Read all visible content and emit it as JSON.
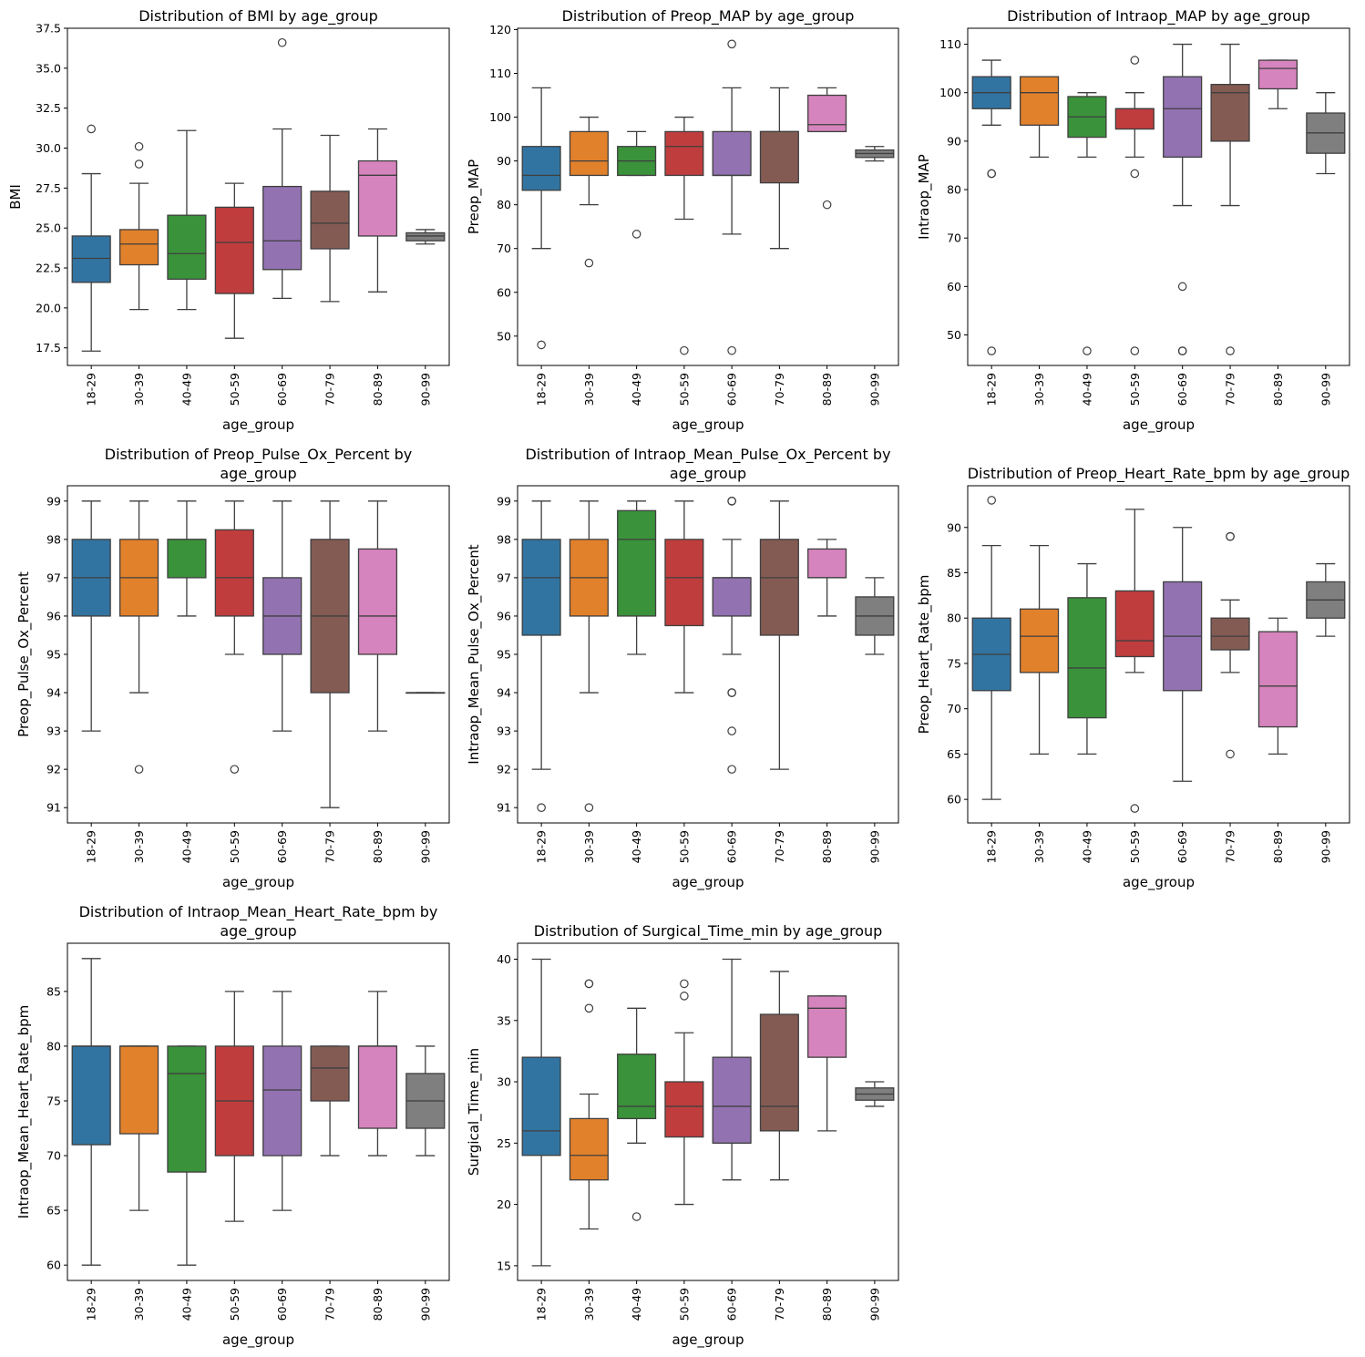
{
  "figure": {
    "palette": [
      "#1f77b4",
      "#ff7f0e",
      "#2ca02c",
      "#d62728",
      "#9467bd",
      "#8c564b",
      "#e377c2",
      "#7f7f7f"
    ],
    "box_alpha_note": "seaborn desaturated palette",
    "box_colors": [
      "#3274a1",
      "#e1812c",
      "#3a923a",
      "#c03d3e",
      "#9372b2",
      "#845b53",
      "#d684bd",
      "#7f7f7f"
    ],
    "line_color": "#3f3f3f"
  },
  "chart_data": [
    {
      "type": "box",
      "title": "Distribution of BMI by age_group",
      "title_lines": [
        "Distribution of BMI by age_group"
      ],
      "xlabel": "age_group",
      "ylabel": "BMI",
      "ylim": [
        16.4,
        37.5
      ],
      "yticks": [
        17.5,
        20.0,
        22.5,
        25.0,
        27.5,
        30.0,
        32.5,
        35.0,
        37.5
      ],
      "ytick_labels": [
        "17.5",
        "20.0",
        "22.5",
        "25.0",
        "27.5",
        "30.0",
        "32.5",
        "35.0",
        "37.5"
      ],
      "categories": [
        "18-29",
        "30-39",
        "40-49",
        "50-59",
        "60-69",
        "70-79",
        "80-89",
        "90-99"
      ],
      "boxes": [
        {
          "whislo": 17.3,
          "q1": 21.6,
          "med": 23.1,
          "q3": 24.5,
          "whishi": 28.4,
          "fliers": [
            31.2
          ]
        },
        {
          "whislo": 19.9,
          "q1": 22.7,
          "med": 24.0,
          "q3": 24.9,
          "whishi": 27.8,
          "fliers": [
            30.1,
            29.0
          ]
        },
        {
          "whislo": 19.9,
          "q1": 21.8,
          "med": 23.4,
          "q3": 25.8,
          "whishi": 31.1,
          "fliers": []
        },
        {
          "whislo": 18.1,
          "q1": 20.9,
          "med": 24.1,
          "q3": 26.3,
          "whishi": 27.8,
          "fliers": []
        },
        {
          "whislo": 20.6,
          "q1": 22.4,
          "med": 24.2,
          "q3": 27.6,
          "whishi": 31.2,
          "fliers": [
            36.6
          ]
        },
        {
          "whislo": 20.4,
          "q1": 23.7,
          "med": 25.3,
          "q3": 27.3,
          "whishi": 30.8,
          "fliers": []
        },
        {
          "whislo": 21.0,
          "q1": 24.5,
          "med": 28.3,
          "q3": 29.2,
          "whishi": 31.2,
          "fliers": []
        },
        {
          "whislo": 24.0,
          "q1": 24.2,
          "med": 24.5,
          "q3": 24.7,
          "whishi": 24.9,
          "fliers": []
        }
      ]
    },
    {
      "type": "box",
      "title": "Distribution of Preop_MAP by age_group",
      "title_lines": [
        "Distribution of Preop_MAP by age_group"
      ],
      "xlabel": "age_group",
      "ylabel": "Preop_MAP",
      "ylim": [
        43.3,
        120.3
      ],
      "yticks": [
        50,
        60,
        70,
        80,
        90,
        100,
        110,
        120
      ],
      "ytick_labels": [
        "50",
        "60",
        "70",
        "80",
        "90",
        "100",
        "110",
        "120"
      ],
      "categories": [
        "18-29",
        "30-39",
        "40-49",
        "50-59",
        "60-69",
        "70-79",
        "80-89",
        "90-99"
      ],
      "boxes": [
        {
          "whislo": 70.0,
          "q1": 83.3,
          "med": 86.7,
          "q3": 93.3,
          "whishi": 106.7,
          "fliers": [
            48.0
          ]
        },
        {
          "whislo": 80.0,
          "q1": 86.7,
          "med": 90.0,
          "q3": 96.7,
          "whishi": 100.0,
          "fliers": [
            66.7
          ]
        },
        {
          "whislo": 86.7,
          "q1": 86.7,
          "med": 90.0,
          "q3": 93.3,
          "whishi": 96.7,
          "fliers": [
            73.3
          ]
        },
        {
          "whislo": 76.7,
          "q1": 86.7,
          "med": 93.3,
          "q3": 96.7,
          "whishi": 100.0,
          "fliers": [
            46.7
          ]
        },
        {
          "whislo": 73.3,
          "q1": 86.7,
          "med": 86.7,
          "q3": 96.7,
          "whishi": 106.7,
          "fliers": [
            116.7,
            46.7
          ]
        },
        {
          "whislo": 70.0,
          "q1": 85.0,
          "med": 96.7,
          "q3": 96.7,
          "whishi": 106.7,
          "fliers": []
        },
        {
          "whislo": 96.7,
          "q1": 96.7,
          "med": 98.3,
          "q3": 105.0,
          "whishi": 106.7,
          "fliers": [
            80.0
          ]
        },
        {
          "whislo": 90.0,
          "q1": 90.8,
          "med": 91.7,
          "q3": 92.5,
          "whishi": 93.3,
          "fliers": []
        }
      ]
    },
    {
      "type": "box",
      "title": "Distribution of Intraop_MAP by age_group",
      "title_lines": [
        "Distribution of Intraop_MAP by age_group"
      ],
      "xlabel": "age_group",
      "ylabel": "Intraop_MAP",
      "ylim": [
        43.7,
        113.3
      ],
      "yticks": [
        50,
        60,
        70,
        80,
        90,
        100,
        110
      ],
      "ytick_labels": [
        "50",
        "60",
        "70",
        "80",
        "90",
        "100",
        "110"
      ],
      "categories": [
        "18-29",
        "30-39",
        "40-49",
        "50-59",
        "60-69",
        "70-79",
        "80-89",
        "90-99"
      ],
      "boxes": [
        {
          "whislo": 93.3,
          "q1": 96.7,
          "med": 100.0,
          "q3": 103.3,
          "whishi": 106.7,
          "fliers": [
            83.3,
            83.3,
            46.7
          ]
        },
        {
          "whislo": 86.7,
          "q1": 93.3,
          "med": 100.0,
          "q3": 103.3,
          "whishi": 103.3,
          "fliers": []
        },
        {
          "whislo": 86.7,
          "q1": 90.8,
          "med": 95.0,
          "q3": 99.2,
          "whishi": 100.0,
          "fliers": [
            46.7
          ]
        },
        {
          "whislo": 86.7,
          "q1": 92.5,
          "med": 96.7,
          "q3": 96.7,
          "whishi": 100.0,
          "fliers": [
            106.7,
            83.3,
            46.7
          ]
        },
        {
          "whislo": 76.7,
          "q1": 86.7,
          "med": 96.7,
          "q3": 103.3,
          "whishi": 110.0,
          "fliers": [
            60.0,
            46.7,
            46.7
          ]
        },
        {
          "whislo": 76.7,
          "q1": 90.0,
          "med": 100.0,
          "q3": 101.7,
          "whishi": 110.0,
          "fliers": [
            46.7
          ]
        },
        {
          "whislo": 96.7,
          "q1": 100.8,
          "med": 105.0,
          "q3": 106.7,
          "whishi": 106.7,
          "fliers": []
        },
        {
          "whislo": 83.3,
          "q1": 87.5,
          "med": 91.7,
          "q3": 95.8,
          "whishi": 100.0,
          "fliers": []
        }
      ]
    },
    {
      "type": "box",
      "title": "Distribution of Preop_Pulse_Ox_Percent by age_group",
      "title_lines": [
        "Distribution of Preop_Pulse_Ox_Percent by",
        "age_group"
      ],
      "xlabel": "age_group",
      "ylabel": "Preop_Pulse_Ox_Percent",
      "ylim": [
        90.6,
        99.4
      ],
      "yticks": [
        91,
        92,
        93,
        94,
        95,
        96,
        97,
        98,
        99
      ],
      "ytick_labels": [
        "91",
        "92",
        "93",
        "94",
        "95",
        "96",
        "97",
        "98",
        "99"
      ],
      "categories": [
        "18-29",
        "30-39",
        "40-49",
        "50-59",
        "60-69",
        "70-79",
        "80-89",
        "90-99"
      ],
      "boxes": [
        {
          "whislo": 93,
          "q1": 96,
          "med": 97,
          "q3": 98,
          "whishi": 99,
          "fliers": []
        },
        {
          "whislo": 94,
          "q1": 96,
          "med": 97,
          "q3": 98,
          "whishi": 99,
          "fliers": [
            92
          ]
        },
        {
          "whislo": 96,
          "q1": 97,
          "med": 98,
          "q3": 98,
          "whishi": 99,
          "fliers": []
        },
        {
          "whislo": 95,
          "q1": 96,
          "med": 97,
          "q3": 98.25,
          "whishi": 99,
          "fliers": [
            92
          ]
        },
        {
          "whislo": 93,
          "q1": 95,
          "med": 96,
          "q3": 97,
          "whishi": 99,
          "fliers": []
        },
        {
          "whislo": 91,
          "q1": 94,
          "med": 96,
          "q3": 98,
          "whishi": 99,
          "fliers": []
        },
        {
          "whislo": 93,
          "q1": 95,
          "med": 96,
          "q3": 97.75,
          "whishi": 99,
          "fliers": []
        },
        {
          "whislo": 94,
          "q1": 94,
          "med": 94,
          "q3": 94,
          "whishi": 94,
          "fliers": []
        }
      ]
    },
    {
      "type": "box",
      "title": "Distribution of Intraop_Mean_Pulse_Ox_Percent by age_group",
      "title_lines": [
        "Distribution of Intraop_Mean_Pulse_Ox_Percent by",
        "age_group"
      ],
      "xlabel": "age_group",
      "ylabel": "Intraop_Mean_Pulse_Ox_Percent",
      "ylim": [
        90.6,
        99.4
      ],
      "yticks": [
        91,
        92,
        93,
        94,
        95,
        96,
        97,
        98,
        99
      ],
      "ytick_labels": [
        "91",
        "92",
        "93",
        "94",
        "95",
        "96",
        "97",
        "98",
        "99"
      ],
      "categories": [
        "18-29",
        "30-39",
        "40-49",
        "50-59",
        "60-69",
        "70-79",
        "80-89",
        "90-99"
      ],
      "boxes": [
        {
          "whislo": 92,
          "q1": 95.5,
          "med": 97,
          "q3": 98,
          "whishi": 99,
          "fliers": [
            91
          ]
        },
        {
          "whislo": 94,
          "q1": 96,
          "med": 97,
          "q3": 98,
          "whishi": 99,
          "fliers": [
            91
          ]
        },
        {
          "whislo": 95,
          "q1": 96,
          "med": 98,
          "q3": 98.75,
          "whishi": 99,
          "fliers": []
        },
        {
          "whislo": 94,
          "q1": 95.75,
          "med": 97,
          "q3": 98,
          "whishi": 99,
          "fliers": []
        },
        {
          "whislo": 95,
          "q1": 96,
          "med": 97,
          "q3": 97,
          "whishi": 98,
          "fliers": [
            99,
            99,
            94,
            94,
            93,
            92
          ]
        },
        {
          "whislo": 92,
          "q1": 95.5,
          "med": 97,
          "q3": 98,
          "whishi": 99,
          "fliers": []
        },
        {
          "whislo": 96,
          "q1": 97,
          "med": 97,
          "q3": 97.75,
          "whishi": 98,
          "fliers": []
        },
        {
          "whislo": 95,
          "q1": 95.5,
          "med": 96,
          "q3": 96.5,
          "whishi": 97,
          "fliers": []
        }
      ]
    },
    {
      "type": "box",
      "title": "Distribution of Preop_Heart_Rate_bpm by age_group",
      "title_lines": [
        "Distribution of Preop_Heart_Rate_bpm by age_group"
      ],
      "xlabel": "age_group",
      "ylabel": "Preop_Heart_Rate_bpm",
      "ylim": [
        57.4,
        94.6
      ],
      "yticks": [
        60,
        65,
        70,
        75,
        80,
        85,
        90
      ],
      "ytick_labels": [
        "60",
        "65",
        "70",
        "75",
        "80",
        "85",
        "90"
      ],
      "categories": [
        "18-29",
        "30-39",
        "40-49",
        "50-59",
        "60-69",
        "70-79",
        "80-89",
        "90-99"
      ],
      "boxes": [
        {
          "whislo": 60,
          "q1": 72,
          "med": 76,
          "q3": 80,
          "whishi": 88,
          "fliers": [
            93
          ]
        },
        {
          "whislo": 65,
          "q1": 74,
          "med": 78,
          "q3": 81,
          "whishi": 88,
          "fliers": []
        },
        {
          "whislo": 65,
          "q1": 69,
          "med": 74.5,
          "q3": 82.25,
          "whishi": 86,
          "fliers": []
        },
        {
          "whislo": 74,
          "q1": 75.75,
          "med": 77.5,
          "q3": 83,
          "whishi": 92,
          "fliers": [
            59
          ]
        },
        {
          "whislo": 62,
          "q1": 72,
          "med": 78,
          "q3": 84,
          "whishi": 90,
          "fliers": []
        },
        {
          "whislo": 74,
          "q1": 76.5,
          "med": 78,
          "q3": 80,
          "whishi": 82,
          "fliers": [
            89,
            89,
            65
          ]
        },
        {
          "whislo": 65,
          "q1": 68,
          "med": 72.5,
          "q3": 78.5,
          "whishi": 80,
          "fliers": []
        },
        {
          "whislo": 78,
          "q1": 80,
          "med": 82,
          "q3": 84,
          "whishi": 86,
          "fliers": []
        }
      ]
    },
    {
      "type": "box",
      "title": "Distribution of Intraop_Mean_Heart_Rate_bpm by age_group",
      "title_lines": [
        "Distribution of Intraop_Mean_Heart_Rate_bpm by",
        "age_group"
      ],
      "xlabel": "age_group",
      "ylabel": "Intraop_Mean_Heart_Rate_bpm",
      "ylim": [
        58.6,
        89.4
      ],
      "yticks": [
        60,
        65,
        70,
        75,
        80,
        85
      ],
      "ytick_labels": [
        "60",
        "65",
        "70",
        "75",
        "80",
        "85"
      ],
      "categories": [
        "18-29",
        "30-39",
        "40-49",
        "50-59",
        "60-69",
        "70-79",
        "80-89",
        "90-99"
      ],
      "boxes": [
        {
          "whislo": 60,
          "q1": 71,
          "med": 80,
          "q3": 80,
          "whishi": 88,
          "fliers": []
        },
        {
          "whislo": 65,
          "q1": 72,
          "med": 80,
          "q3": 80,
          "whishi": 80,
          "fliers": []
        },
        {
          "whislo": 60,
          "q1": 68.5,
          "med": 77.5,
          "q3": 80,
          "whishi": 80,
          "fliers": []
        },
        {
          "whislo": 64,
          "q1": 70,
          "med": 75,
          "q3": 80,
          "whishi": 85,
          "fliers": []
        },
        {
          "whislo": 65,
          "q1": 70,
          "med": 76,
          "q3": 80,
          "whishi": 85,
          "fliers": []
        },
        {
          "whislo": 70,
          "q1": 75,
          "med": 78,
          "q3": 80,
          "whishi": 80,
          "fliers": []
        },
        {
          "whislo": 70,
          "q1": 72.5,
          "med": 80,
          "q3": 80,
          "whishi": 85,
          "fliers": []
        },
        {
          "whislo": 70,
          "q1": 72.5,
          "med": 75,
          "q3": 77.5,
          "whishi": 80,
          "fliers": []
        }
      ]
    },
    {
      "type": "box",
      "title": "Distribution of Surgical_Time_min by age_group",
      "title_lines": [
        "Distribution of Surgical_Time_min by age_group"
      ],
      "xlabel": "age_group",
      "ylabel": "Surgical_Time_min",
      "ylim": [
        13.8,
        41.3
      ],
      "yticks": [
        15,
        20,
        25,
        30,
        35,
        40
      ],
      "ytick_labels": [
        "15",
        "20",
        "25",
        "30",
        "35",
        "40"
      ],
      "categories": [
        "18-29",
        "30-39",
        "40-49",
        "50-59",
        "60-69",
        "70-79",
        "80-89",
        "90-99"
      ],
      "boxes": [
        {
          "whislo": 15,
          "q1": 24,
          "med": 26,
          "q3": 32,
          "whishi": 40,
          "fliers": []
        },
        {
          "whislo": 18,
          "q1": 22,
          "med": 24,
          "q3": 27,
          "whishi": 29,
          "fliers": [
            38,
            38,
            36
          ]
        },
        {
          "whislo": 25,
          "q1": 27,
          "med": 28,
          "q3": 32.25,
          "whishi": 36,
          "fliers": [
            19
          ]
        },
        {
          "whislo": 20,
          "q1": 25.5,
          "med": 28,
          "q3": 30,
          "whishi": 34,
          "fliers": [
            38,
            37
          ]
        },
        {
          "whislo": 22,
          "q1": 25,
          "med": 28,
          "q3": 32,
          "whishi": 40,
          "fliers": []
        },
        {
          "whislo": 22,
          "q1": 26,
          "med": 28,
          "q3": 35.5,
          "whishi": 39,
          "fliers": []
        },
        {
          "whislo": 26,
          "q1": 32,
          "med": 36,
          "q3": 37,
          "whishi": 37,
          "fliers": []
        },
        {
          "whislo": 28,
          "q1": 28.5,
          "med": 29,
          "q3": 29.5,
          "whishi": 30,
          "fliers": []
        }
      ]
    }
  ]
}
